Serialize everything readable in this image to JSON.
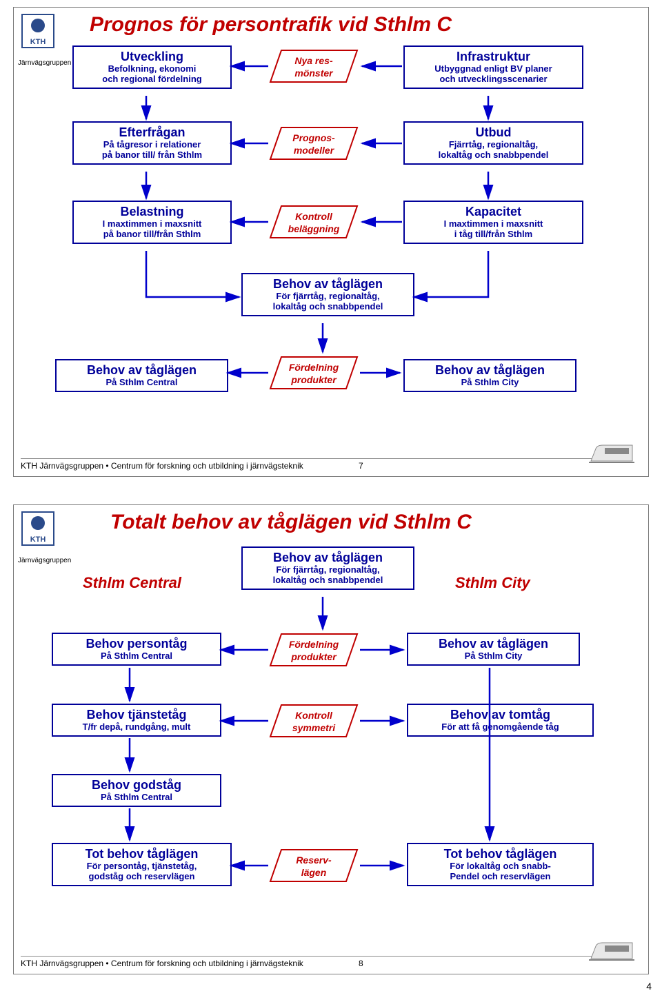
{
  "footer": "KTH Järnvägsgruppen • Centrum för forskning och utbildning i järnvägsteknik",
  "logoSub": "Järnvägsgruppen",
  "pageCorner": "4",
  "colors": {
    "title": "#c00000",
    "box": "#000099",
    "arrow": "#0000cc",
    "parStroke": "#c00000"
  },
  "slide1": {
    "title": "Prognos för persontrafik vid Sthlm C",
    "page": "7",
    "boxes": {
      "utv": {
        "h": "Utveckling",
        "s": "Befolkning, ekonomi\noch regional fördelning"
      },
      "inf": {
        "h": "Infrastruktur",
        "s": "Utbyggnad enligt BV planer\noch utvecklingsscenarier"
      },
      "eft": {
        "h": "Efterfrågan",
        "s": "På tågresor i relationer\npå banor till/ från Sthlm"
      },
      "utb": {
        "h": "Utbud",
        "s": "Fjärrtåg, regionaltåg,\nlokaltåg och snabbpendel"
      },
      "bel": {
        "h": "Belastning",
        "s": "I maxtimmen i maxsnitt\npå banor till/från Sthlm"
      },
      "kap": {
        "h": "Kapacitet",
        "s": "I maxtimmen i maxsnitt\ni tåg till/från Sthlm"
      },
      "bat": {
        "h": "Behov av tåglägen",
        "s": "För fjärrtåg, regionaltåg,\nlokaltåg och snabbpendel"
      },
      "bsc": {
        "h": "Behov av tåglägen",
        "s": "På Sthlm Central"
      },
      "bci": {
        "h": "Behov av tåglägen",
        "s": "På Sthlm City"
      }
    },
    "pars": {
      "nya": {
        "t": "Nya res-\nmönster"
      },
      "pro": {
        "t": "Prognos-\nmodeller"
      },
      "kon": {
        "t": "Kontroll\nbeläggning"
      },
      "for": {
        "t": "Fördelning\nprodukter"
      }
    }
  },
  "slide2": {
    "title": "Totalt behov av tåglägen vid Sthlm C",
    "page": "8",
    "labels": {
      "l": "Sthlm Central",
      "r": "Sthlm City"
    },
    "boxes": {
      "top": {
        "h": "Behov av tåglägen",
        "s": "För fjärrtåg, regionaltåg,\nlokaltåg och snabbpendel"
      },
      "bp": {
        "h": "Behov persontåg",
        "s": "På Sthlm Central"
      },
      "btl": {
        "h": "Behov av tåglägen",
        "s": "På Sthlm City"
      },
      "bt": {
        "h": "Behov tjänstetåg",
        "s": "T/fr depå, rundgång, mult"
      },
      "bto": {
        "h": "Behov av tomtåg",
        "s": "För att få genomgående tåg"
      },
      "bg": {
        "h": "Behov godståg",
        "s": "På Sthlm Central"
      },
      "tot1": {
        "h": "Tot behov tåglägen",
        "s": "För persontåg, tjänstetåg,\ngodståg och reservlägen"
      },
      "tot2": {
        "h": "Tot behov tåglägen",
        "s": "För lokaltåg och snabb-\nPendel och reservlägen"
      }
    },
    "pars": {
      "for": {
        "t": "Fördelning\nprodukter"
      },
      "kon": {
        "t": "Kontroll\nsymmetri"
      },
      "res": {
        "t": "Reserv-\nlägen"
      }
    }
  }
}
